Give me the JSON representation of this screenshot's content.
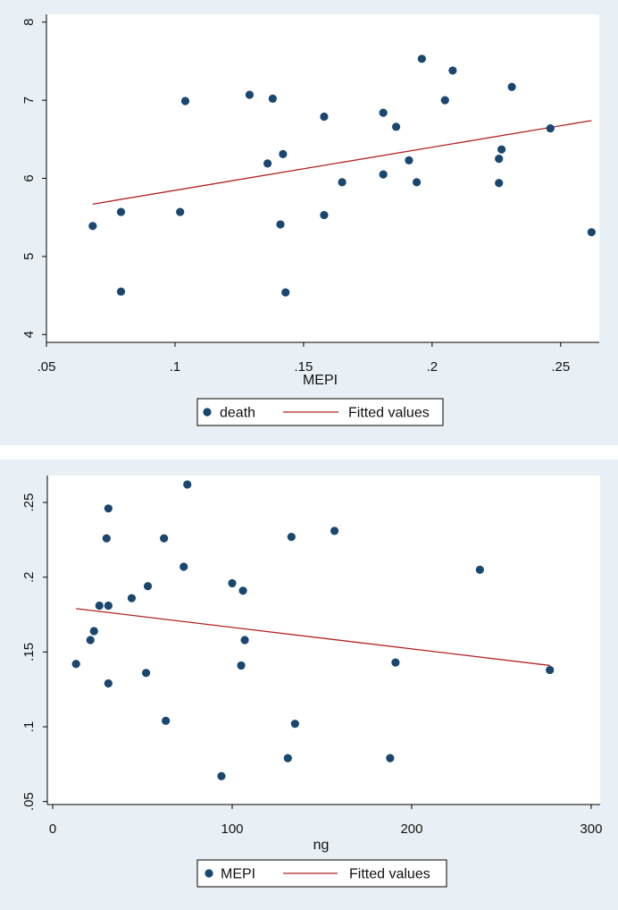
{
  "colors": {
    "panel_bg": "#e9f0f5",
    "plot_bg": "#ffffff",
    "marker": "#1a476f",
    "fit_line": "#b22222"
  },
  "chart_data": [
    {
      "type": "scatter",
      "xlabel": "MEPI",
      "ylabel": "",
      "xlim": [
        0.05,
        0.265
      ],
      "ylim": [
        3.9,
        8.1
      ],
      "xticks": [
        0.05,
        0.1,
        0.15,
        0.2,
        0.25
      ],
      "xtick_labels": [
        ".05",
        ".1",
        ".15",
        ".2",
        ".25"
      ],
      "yticks": [
        4,
        5,
        6,
        7,
        8
      ],
      "ytick_labels": [
        "4",
        "5",
        "6",
        "7",
        "8"
      ],
      "legend": [
        "death",
        "Fitted values"
      ],
      "series": [
        {
          "name": "death",
          "kind": "points",
          "x": [
            0.068,
            0.079,
            0.079,
            0.102,
            0.104,
            0.129,
            0.136,
            0.138,
            0.141,
            0.142,
            0.143,
            0.158,
            0.158,
            0.165,
            0.181,
            0.181,
            0.186,
            0.191,
            0.194,
            0.196,
            0.205,
            0.208,
            0.226,
            0.226,
            0.227,
            0.231,
            0.246,
            0.262
          ],
          "y": [
            5.39,
            5.57,
            4.55,
            5.57,
            6.99,
            7.07,
            6.19,
            7.02,
            5.41,
            6.31,
            4.54,
            6.79,
            5.53,
            5.95,
            6.84,
            6.05,
            6.66,
            6.23,
            5.95,
            7.53,
            7.0,
            7.38,
            6.25,
            5.94,
            6.37,
            7.17,
            6.64,
            5.31
          ]
        },
        {
          "name": "Fitted values",
          "kind": "line",
          "x": [
            0.068,
            0.262
          ],
          "y": [
            5.67,
            6.74
          ]
        }
      ]
    },
    {
      "type": "scatter",
      "xlabel": "ng",
      "ylabel": "",
      "xlim": [
        -3,
        305
      ],
      "ylim": [
        0.048,
        0.268
      ],
      "xticks": [
        0,
        100,
        200,
        300
      ],
      "xtick_labels": [
        "0",
        "100",
        "200",
        "300"
      ],
      "yticks": [
        0.05,
        0.1,
        0.15,
        0.2,
        0.25
      ],
      "ytick_labels": [
        ".05",
        ".1",
        ".15",
        ".2",
        ".25"
      ],
      "legend": [
        "MEPI",
        "Fitted values"
      ],
      "series": [
        {
          "name": "MEPI",
          "kind": "points",
          "x": [
            13,
            21,
            23,
            26,
            30,
            31,
            31,
            31,
            44,
            52,
            53,
            62,
            63,
            73,
            75,
            94,
            100,
            106,
            107,
            105,
            131,
            133,
            135,
            157,
            188,
            191,
            238,
            277
          ],
          "y": [
            0.142,
            0.158,
            0.164,
            0.181,
            0.226,
            0.246,
            0.181,
            0.129,
            0.186,
            0.136,
            0.194,
            0.226,
            0.104,
            0.207,
            0.262,
            0.067,
            0.196,
            0.191,
            0.158,
            0.141,
            0.079,
            0.227,
            0.102,
            0.231,
            0.079,
            0.143,
            0.205,
            0.138
          ]
        },
        {
          "name": "Fitted values",
          "kind": "line",
          "x": [
            13,
            277
          ],
          "y": [
            0.179,
            0.141
          ]
        }
      ]
    }
  ]
}
